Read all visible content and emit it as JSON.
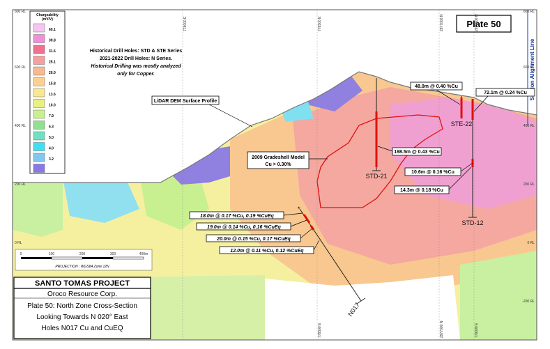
{
  "plate": "Plate 50",
  "legend": {
    "title": "Chargeability",
    "unit": "(mV/V)",
    "items": [
      {
        "label": "60.1",
        "color": "#f6c6f0"
      },
      {
        "label": "39.8",
        "color": "#f090d8"
      },
      {
        "label": "31.6",
        "color": "#f07090"
      },
      {
        "label": "25.1",
        "color": "#f4a0a0"
      },
      {
        "label": "20.0",
        "color": "#f8b890"
      },
      {
        "label": "15.8",
        "color": "#fbd090"
      },
      {
        "label": "13.6",
        "color": "#f8e890"
      },
      {
        "label": "10.0",
        "color": "#e8f080"
      },
      {
        "label": "7.9",
        "color": "#c8f090"
      },
      {
        "label": "6.3",
        "color": "#90e090"
      },
      {
        "label": "5.0",
        "color": "#70e0c0"
      },
      {
        "label": "4.0",
        "color": "#40e0f0"
      },
      {
        "label": "3.2",
        "color": "#80c8f0"
      },
      {
        "label": "",
        "color": "#8878e8"
      }
    ]
  },
  "note": {
    "line1": "Historical Drill Holes: STD & STE Series",
    "line2": "2021-2022 Drill Holes: N Series.",
    "line3": "Historical Drilling was mostly analyzed",
    "line4": "only for Copper."
  },
  "callouts": {
    "surface": "LiDAR DEM Surface Profile",
    "model1": "2009 Gradeshell Model",
    "model2": "Cu > 0.30%"
  },
  "intercepts": [
    "48.0m @ 0.40 %Cu",
    "72.1m @ 0.24 %Cu",
    "198.5m @ 0.43 %Cu",
    "10.6m @ 0.16 %Cu",
    "14.3m @ 0.18 %Cu",
    "18.0m @ 0.17 %Cu, 0.19 %CuEq",
    "19.0m @ 0.14 %Cu, 0.16 %CuEq",
    "20.0m @ 0.15 %Cu, 0.17 %CuEq",
    "12.0m @ 0.11 %Cu, 0.12 %CuEq"
  ],
  "holes": [
    "STD-21",
    "STE-22",
    "STD-12",
    "N017"
  ],
  "left_axis": [
    "800 RL",
    "600 RL",
    "400 RL",
    "200 RL",
    "0 RL"
  ],
  "right_axis": [
    "800 RL",
    "600 RL",
    "400 RL",
    "200 RL",
    "0 RL",
    "-200 RL"
  ],
  "top_axis": [
    "778000 E",
    "778500 E",
    "2977000 N",
    "2977500 N"
  ],
  "bottom_axis": [
    "778500 E",
    "2977000 N",
    "779000 E"
  ],
  "side_label": "Section Alignment Line",
  "scale": {
    "ticks": [
      "0",
      "100",
      "200",
      "300",
      "400m"
    ],
    "projection": "PROJECTION : WGS84 Zone 12N"
  },
  "title_block": {
    "project": "SANTO TOMAS PROJECT",
    "company": "Oroco Resource Corp.",
    "line1": "Plate 50: North Zone Cross-Section",
    "line2": "Looking Towards N 020° East",
    "line3": "Holes N017 Cu and CuEQ"
  }
}
